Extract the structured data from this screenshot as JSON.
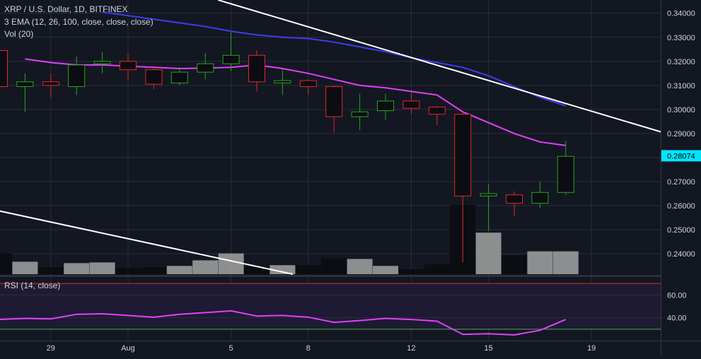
{
  "header": {
    "symbol_line": "XRP / U.S. Dollar, 1D, BITFINEX",
    "ema_line": "3 EMA (12, 26, 100, close, close, close)",
    "vol_line": "Vol (20)"
  },
  "rsi_panel": {
    "label": "RSI (14, close)"
  },
  "colors": {
    "background": "#131722",
    "grid": "#2a2e39",
    "up_candle": "#26a620",
    "down_candle": "#e0282e",
    "ema_fast": "#e040fb",
    "ema_slow": "#3d3df0",
    "trendline": "#ffffff",
    "rsi_line": "#e040fb",
    "rsi_band": "#1e1a33",
    "rsi_upper_line": "#d32f2f",
    "rsi_lower_line": "#4caf50",
    "price_tag": "#00e5ff",
    "volume_up": "#a3a3a3",
    "volume_down": "#0b0d12"
  },
  "chart_data": {
    "type": "candlestick",
    "price_axis": {
      "ylim": [
        0.2315,
        0.3455
      ],
      "ticks": [
        "0.34000",
        "0.33000",
        "0.32000",
        "0.31000",
        "0.30000",
        "0.29000",
        "0.28000",
        "0.27000",
        "0.26000",
        "0.25000",
        "0.24000"
      ],
      "tick_values": [
        0.34,
        0.33,
        0.32,
        0.31,
        0.3,
        0.29,
        0.28,
        0.27,
        0.26,
        0.25,
        0.24
      ]
    },
    "last_price_label": "0.28074",
    "last_price_value": 0.28074,
    "x_axis": {
      "tick_labels": [
        "29",
        "Aug",
        "5",
        "8",
        "12",
        "15",
        "19"
      ],
      "tick_indices": [
        2,
        5,
        9,
        12,
        16,
        19,
        23
      ]
    },
    "candles": [
      {
        "open": 0.3245,
        "high": 0.3275,
        "low": 0.307,
        "close": 0.3095
      },
      {
        "open": 0.3095,
        "high": 0.315,
        "low": 0.299,
        "close": 0.3115
      },
      {
        "open": 0.3115,
        "high": 0.315,
        "low": 0.305,
        "close": 0.31
      },
      {
        "open": 0.3095,
        "high": 0.322,
        "low": 0.306,
        "close": 0.3185
      },
      {
        "open": 0.319,
        "high": 0.324,
        "low": 0.315,
        "close": 0.32
      },
      {
        "open": 0.32,
        "high": 0.323,
        "low": 0.312,
        "close": 0.3165
      },
      {
        "open": 0.3165,
        "high": 0.318,
        "low": 0.3085,
        "close": 0.3105
      },
      {
        "open": 0.311,
        "high": 0.3175,
        "low": 0.31,
        "close": 0.3155
      },
      {
        "open": 0.3155,
        "high": 0.3235,
        "low": 0.3125,
        "close": 0.319
      },
      {
        "open": 0.319,
        "high": 0.332,
        "low": 0.316,
        "close": 0.3225
      },
      {
        "open": 0.3225,
        "high": 0.3245,
        "low": 0.3075,
        "close": 0.3115
      },
      {
        "open": 0.311,
        "high": 0.3165,
        "low": 0.306,
        "close": 0.312
      },
      {
        "open": 0.312,
        "high": 0.3125,
        "low": 0.306,
        "close": 0.3095
      },
      {
        "open": 0.3095,
        "high": 0.31,
        "low": 0.2905,
        "close": 0.297
      },
      {
        "open": 0.297,
        "high": 0.3065,
        "low": 0.2915,
        "close": 0.299
      },
      {
        "open": 0.2995,
        "high": 0.3065,
        "low": 0.2955,
        "close": 0.3035
      },
      {
        "open": 0.3035,
        "high": 0.307,
        "low": 0.298,
        "close": 0.3005
      },
      {
        "open": 0.301,
        "high": 0.3015,
        "low": 0.2935,
        "close": 0.298
      },
      {
        "open": 0.298,
        "high": 0.299,
        "low": 0.2365,
        "close": 0.264
      },
      {
        "open": 0.264,
        "high": 0.269,
        "low": 0.2495,
        "close": 0.265
      },
      {
        "open": 0.2645,
        "high": 0.266,
        "low": 0.2555,
        "close": 0.261
      },
      {
        "open": 0.261,
        "high": 0.27,
        "low": 0.259,
        "close": 0.2655
      },
      {
        "open": 0.2655,
        "high": 0.287,
        "low": 0.2645,
        "close": 0.2805
      }
    ],
    "ema_fast": [
      0.321,
      0.3195,
      0.3185,
      0.3185,
      0.318,
      0.3175,
      0.317,
      0.3172,
      0.3175,
      0.3185,
      0.317,
      0.315,
      0.3125,
      0.31,
      0.309,
      0.3075,
      0.306,
      0.299,
      0.2945,
      0.29,
      0.2865,
      0.285
    ],
    "ema_fast_start_index": 1,
    "ema_slow": [
      0.3405,
      0.339,
      0.3375,
      0.336,
      0.3345,
      0.3325,
      0.331,
      0.33,
      0.3295,
      0.328,
      0.326,
      0.324,
      0.3215,
      0.3195,
      0.3175,
      0.314,
      0.3095,
      0.305,
      0.3015
    ],
    "ema_slow_start_index": 4,
    "trendlines": [
      {
        "from": {
          "index": 8.5,
          "price": 0.3455
        },
        "to": {
          "index": 26.6,
          "price": 0.2878
        }
      },
      {
        "from": {
          "index": 0,
          "price": 0.2578
        },
        "to": {
          "index": 11.4,
          "price": 0.2315
        }
      }
    ],
    "volume": [
      0.3,
      0.18,
      0.1,
      0.16,
      0.17,
      0.09,
      0.1,
      0.12,
      0.2,
      0.3,
      0.1,
      0.13,
      0.13,
      0.23,
      0.22,
      0.12,
      0.07,
      0.14,
      1.0,
      0.6,
      0.27,
      0.33,
      0.33
    ],
    "rsi": {
      "ylim": [
        20,
        75
      ],
      "ticks": [
        "60.00",
        "40.00"
      ],
      "tick_values": [
        60,
        40
      ],
      "upper": 70,
      "lower": 30,
      "values": [
        38.5,
        39.5,
        39.0,
        43.0,
        43.5,
        42.0,
        40.5,
        43.0,
        44.5,
        46.0,
        41.5,
        42.0,
        40.5,
        36.0,
        37.5,
        39.5,
        38.5,
        37.0,
        25.5,
        26.0,
        25.0,
        29.0,
        38.5
      ]
    }
  }
}
